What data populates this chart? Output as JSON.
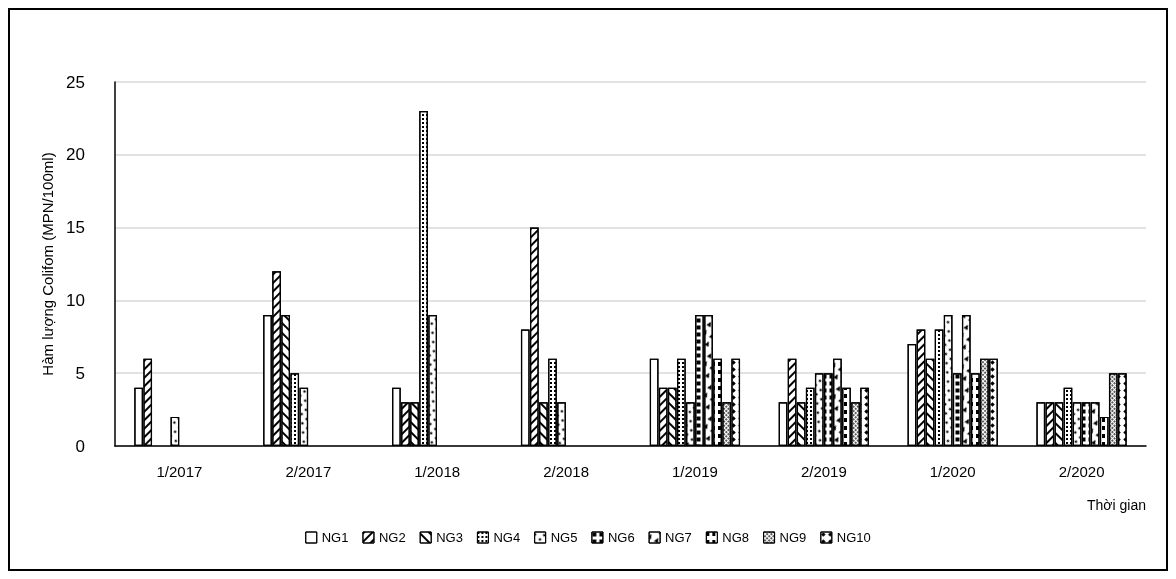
{
  "chart_data": {
    "type": "bar",
    "xlabel": "Thời gian",
    "ylabel": "Hàm lượng Colifom (MPN/100ml)",
    "categories": [
      "1/2017",
      "2/2017",
      "1/2018",
      "2/2018",
      "1/2019",
      "2/2019",
      "1/2020",
      "2/2020"
    ],
    "series": [
      {
        "name": "NG1",
        "color": "#ffffff",
        "values": [
          4,
          9,
          4,
          8,
          6,
          3,
          7,
          3
        ]
      },
      {
        "name": "NG2",
        "color": "#ffffff",
        "values": [
          6,
          12,
          3,
          15,
          4,
          6,
          8,
          3
        ]
      },
      {
        "name": "NG3",
        "color": "#ffffff",
        "values": [
          null,
          9,
          3,
          3,
          4,
          3,
          6,
          3
        ]
      },
      {
        "name": "NG4",
        "color": "#ffffff",
        "values": [
          null,
          5,
          23,
          6,
          6,
          4,
          8,
          4
        ]
      },
      {
        "name": "NG5",
        "color": "#ffffff",
        "values": [
          2,
          4,
          9,
          3,
          3,
          5,
          9,
          3
        ]
      },
      {
        "name": "NG6",
        "color": "#ffffff",
        "values": [
          null,
          null,
          null,
          null,
          9,
          5,
          5,
          3
        ]
      },
      {
        "name": "NG7",
        "color": "#ffffff",
        "values": [
          null,
          null,
          null,
          null,
          9,
          6,
          9,
          3
        ]
      },
      {
        "name": "NG8",
        "color": "#ffffff",
        "values": [
          null,
          null,
          null,
          null,
          6,
          4,
          5,
          2
        ]
      },
      {
        "name": "NG9",
        "color": "#ffffff",
        "values": [
          null,
          null,
          null,
          null,
          3,
          3,
          6,
          5
        ]
      },
      {
        "name": "NG10",
        "color": "#ffffff",
        "values": [
          null,
          null,
          null,
          null,
          6,
          4,
          6,
          5
        ]
      }
    ],
    "ylim": [
      0,
      25
    ],
    "yticks": [
      0,
      5,
      10,
      15,
      20,
      25
    ],
    "grid": "y",
    "legend": "bottom"
  }
}
